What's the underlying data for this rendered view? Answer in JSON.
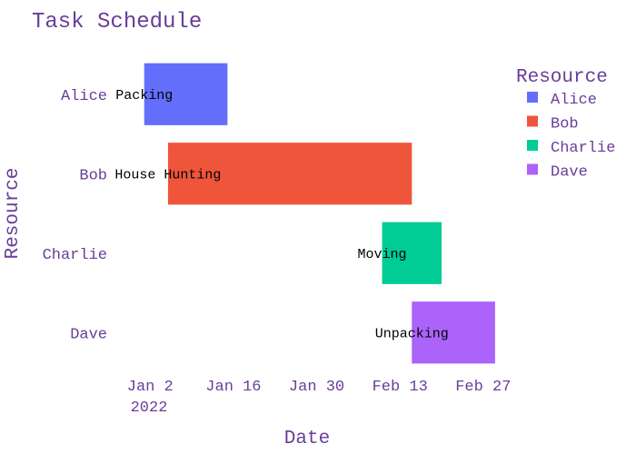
{
  "chart_data": {
    "type": "gantt",
    "title": "Task Schedule",
    "xlabel": "Date",
    "ylabel": "Resource",
    "x_ticks": [
      "Jan 2",
      "Jan 16",
      "Jan 30",
      "Feb 13",
      "Feb 27"
    ],
    "x_tick_year": "2022",
    "x_range": [
      "2021-12-27",
      "2022-03-03"
    ],
    "categories": [
      "Alice",
      "Bob",
      "Charlie",
      "Dave"
    ],
    "legend_title": "Resource",
    "legend_position": "right",
    "tasks": [
      {
        "task": "Packing",
        "resource": "Alice",
        "start": "2022-01-01",
        "finish": "2022-01-15",
        "color": "#636efa"
      },
      {
        "task": "House Hunting",
        "resource": "Bob",
        "start": "2022-01-05",
        "finish": "2022-02-15",
        "color": "#ef553b"
      },
      {
        "task": "Moving",
        "resource": "Charlie",
        "start": "2022-02-10",
        "finish": "2022-02-20",
        "color": "#00cc96"
      },
      {
        "task": "Unpacking",
        "resource": "Dave",
        "start": "2022-02-15",
        "finish": "2022-03-01",
        "color": "#ab63fa"
      }
    ],
    "legend": [
      {
        "name": "Alice",
        "color": "#636efa"
      },
      {
        "name": "Bob",
        "color": "#ef553b"
      },
      {
        "name": "Charlie",
        "color": "#00cc96"
      },
      {
        "name": "Dave",
        "color": "#ab63fa"
      }
    ],
    "grid": false
  }
}
